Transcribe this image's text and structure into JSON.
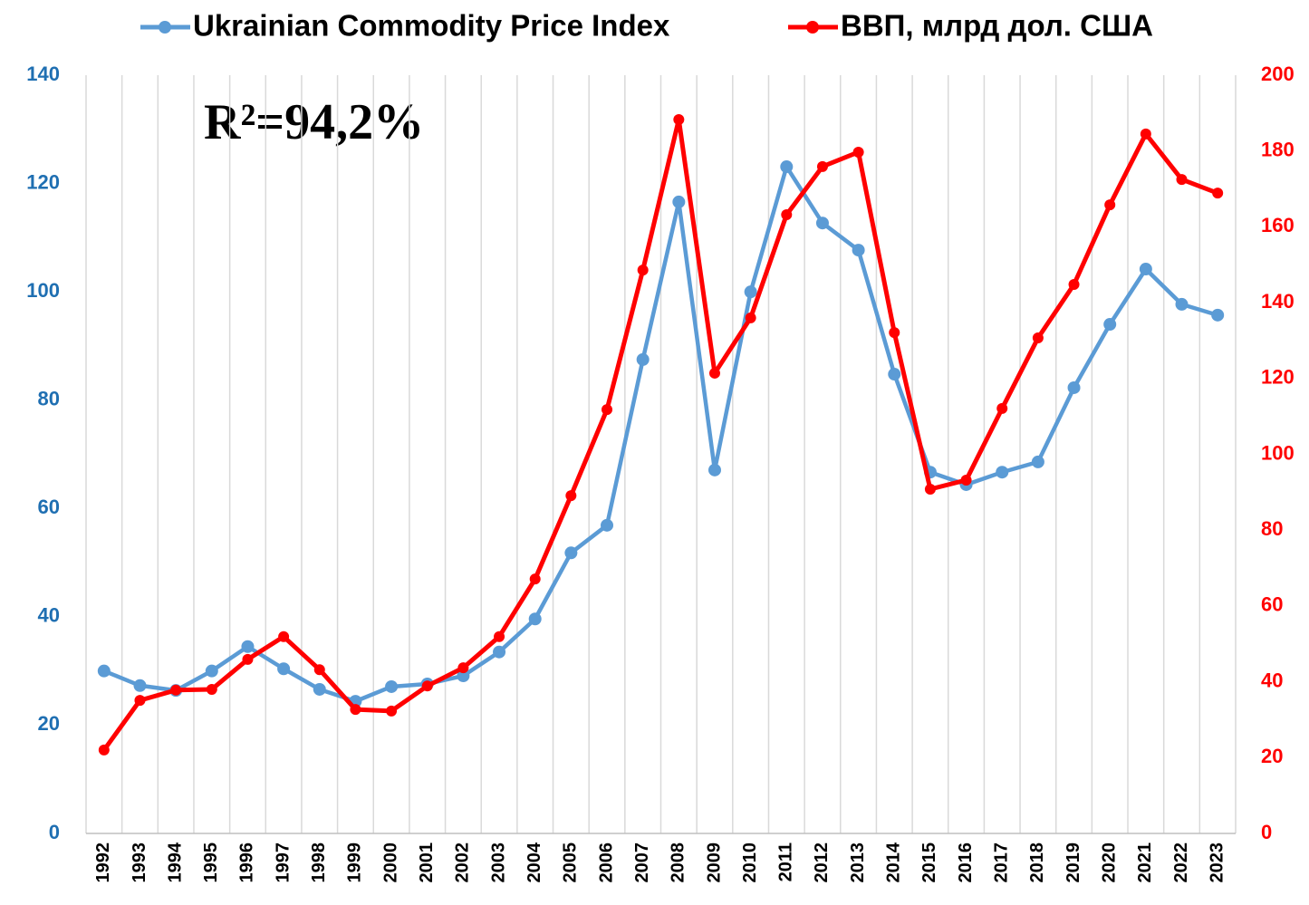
{
  "chart_data": {
    "type": "line",
    "annotation": "R²=94,2%",
    "categories": [
      "1992",
      "1993",
      "1994",
      "1995",
      "1996",
      "1997",
      "1998",
      "1999",
      "2000",
      "2001",
      "2002",
      "2003",
      "2004",
      "2005",
      "2006",
      "2007",
      "2008",
      "2009",
      "2010",
      "2011",
      "2012",
      "2013",
      "2014",
      "2015",
      "2016",
      "2017",
      "2018",
      "2019",
      "2020",
      "2021",
      "2022",
      "2023"
    ],
    "series": [
      {
        "name": "Ukrainian Commodity Price Index",
        "color": "#5b9bd5",
        "axis": "y",
        "values": [
          30,
          27.3,
          26.4,
          30,
          34.5,
          30.4,
          26.6,
          24.4,
          27.1,
          27.6,
          29.1,
          33.5,
          39.6,
          51.8,
          56.9,
          87.5,
          116.6,
          67.1,
          100,
          123.1,
          112.7,
          107.7,
          84.8,
          66.7,
          64.4,
          66.7,
          68.6,
          82.3,
          94,
          104.2,
          97.7,
          95.7
        ]
      },
      {
        "name": "ВВП, млрд дол. США",
        "color": "#ff0000",
        "axis": "y2",
        "values": [
          22,
          35.1,
          37.8,
          38,
          45.9,
          51.9,
          43.2,
          32.7,
          32.3,
          38.9,
          43.7,
          51.9,
          67.1,
          89.1,
          111.8,
          148.6,
          188.3,
          121.4,
          136,
          163.2,
          175.9,
          179.7,
          132.1,
          90.8,
          93.2,
          112.1,
          130.7,
          144.8,
          165.8,
          184.5,
          172.5,
          168.9
        ]
      }
    ],
    "ylim": [
      0,
      140
    ],
    "yticks": [
      0,
      20,
      40,
      60,
      80,
      100,
      120,
      140
    ],
    "ytick_color": "#1f6fb2",
    "y2lim": [
      0,
      200
    ],
    "y2ticks": [
      0,
      20,
      40,
      60,
      80,
      100,
      120,
      140,
      160,
      180,
      200
    ],
    "y2tick_color": "#ff0000",
    "grid": "x",
    "legend": "top"
  }
}
